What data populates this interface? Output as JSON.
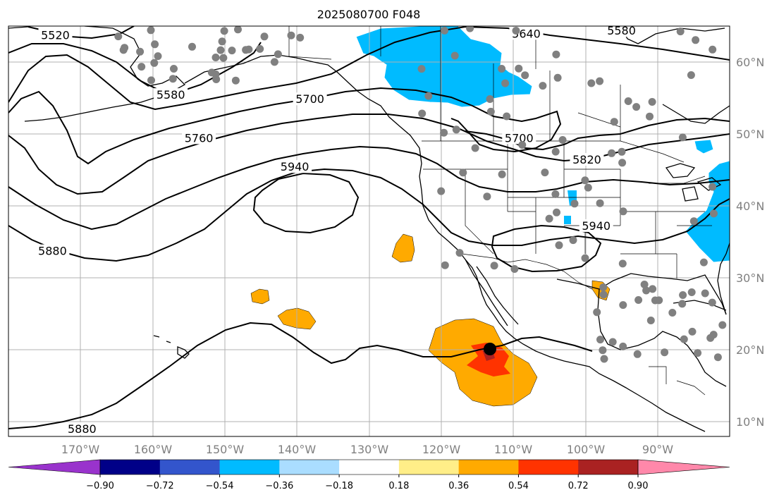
{
  "title": "2025080700 F048",
  "map": {
    "lon_range": [
      -179,
      -79
    ],
    "lat_range": [
      8,
      65
    ],
    "lat_ticks": [
      {
        "value": 60,
        "label": "60°N"
      },
      {
        "value": 50,
        "label": "50°N"
      },
      {
        "value": 40,
        "label": "40°N"
      },
      {
        "value": 30,
        "label": "30°N"
      },
      {
        "value": 20,
        "label": "20°N"
      },
      {
        "value": 10,
        "label": "10°N"
      }
    ],
    "lon_ticks": [
      {
        "value": -170,
        "label": "170°W"
      },
      {
        "value": -160,
        "label": "160°W"
      },
      {
        "value": -150,
        "label": "150°W"
      },
      {
        "value": -140,
        "label": "140°W"
      },
      {
        "value": -130,
        "label": "130°W"
      },
      {
        "value": -120,
        "label": "120°W"
      },
      {
        "value": -110,
        "label": "110°W"
      },
      {
        "value": -100,
        "label": "100°W"
      },
      {
        "value": -90,
        "label": "90°W"
      }
    ],
    "contour_labels": [
      {
        "text": "5520",
        "lon": -172.5,
        "lat": 63.3
      },
      {
        "text": "5580",
        "lon": -156.5,
        "lat": 55.0
      },
      {
        "text": "5700",
        "lon": -137.2,
        "lat": 54.4
      },
      {
        "text": "5760",
        "lon": -152.6,
        "lat": 49.0
      },
      {
        "text": "5940",
        "lon": -139.3,
        "lat": 45.0
      },
      {
        "text": "5880",
        "lon": -172.9,
        "lat": 33.3
      },
      {
        "text": "5880",
        "lon": -168.8,
        "lat": 8.6
      },
      {
        "text": "5640",
        "lon": -107.2,
        "lat": 63.5
      },
      {
        "text": "5580",
        "lon": -94.0,
        "lat": 63.9
      },
      {
        "text": "5700",
        "lon": -108.2,
        "lat": 49.0
      },
      {
        "text": "5820",
        "lon": -98.8,
        "lat": 46.0
      },
      {
        "text": "5940",
        "lon": -97.5,
        "lat": 36.8
      }
    ],
    "station_color": "#808080",
    "storm_marker_color": "#000000",
    "station_count": 126,
    "contour_color": "#000000",
    "grid": true
  },
  "colorbar": {
    "colors": [
      "#9933cc",
      "#000088",
      "#3355cc",
      "#00bbff",
      "#aaddff",
      "#ffffff",
      "#ffee88",
      "#ffaa00",
      "#ff3300",
      "#aa2222",
      "#ff88aa"
    ],
    "labels": [
      "−0.90",
      "−0.72",
      "−0.54",
      "−0.36",
      "−0.18",
      "0.18",
      "0.36",
      "0.54",
      "0.72",
      "0.90"
    ],
    "extend": "both"
  }
}
